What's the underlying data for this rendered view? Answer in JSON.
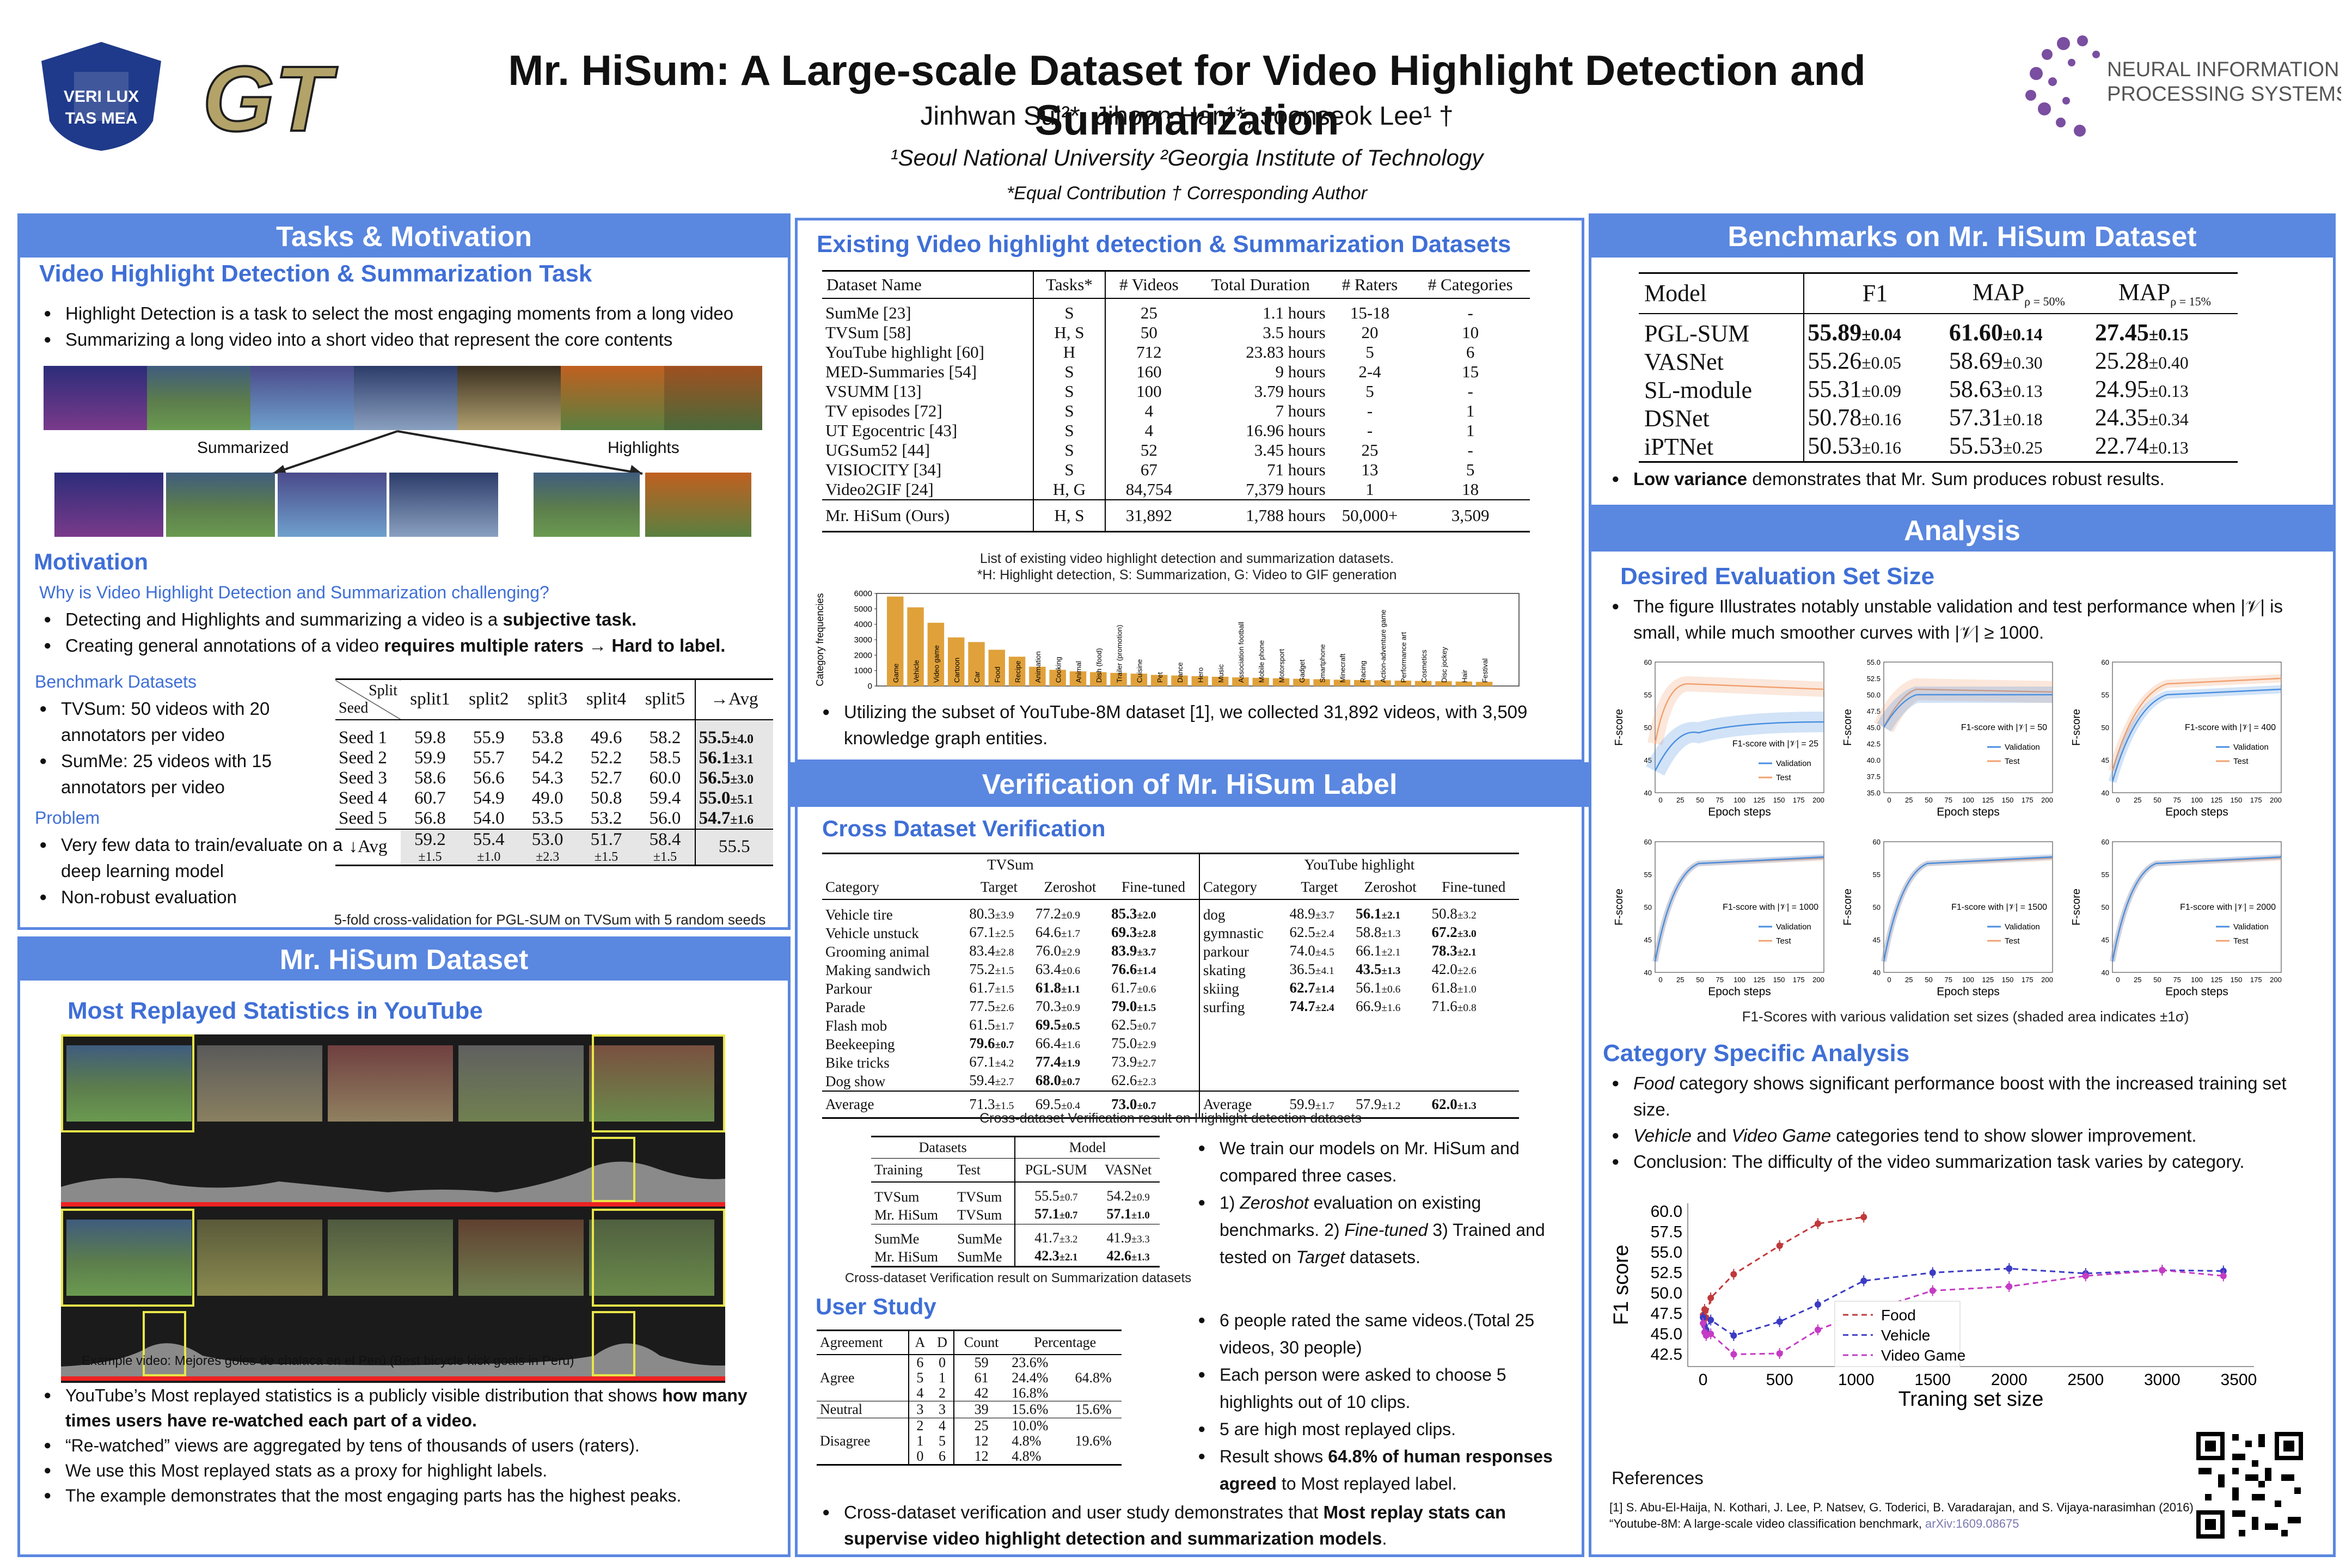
{
  "header": {
    "title": "Mr. HiSum: A Large-scale Dataset for Video Highlight Detection and Summarization",
    "authors": "Jinhwan Sul²*, Jihoon Han¹*, Joonseok Lee¹ †",
    "affiliations": "¹Seoul National University  ²Georgia Institute of Technology",
    "contribution": "*Equal Contribution  † Corresponding Author",
    "logo_snu": "VERI LUX TAS MEA",
    "logo_gt": "GT",
    "logo_neurips": "NEURAL INFORMATION PROCESSING SYSTEMS"
  },
  "tasks": {
    "band": "Tasks & Motivation",
    "subtitle": "Video Highlight Detection & Summarization Task",
    "bullets": [
      "Highlight Detection is a task to select the most engaging moments from a long video",
      "Summarizing a long video into a short video that represent the core contents"
    ],
    "label_summarized": "Summarized",
    "label_highlights": "Highlights",
    "motivation_title": "Motivation",
    "motivation_question": "Why is Video Highlight Detection and Summarization challenging?",
    "motivation_b1_pre": "Detecting and Highlights and summarizing a video is a ",
    "motivation_b1_bold": "subjective task.",
    "motivation_b2_pre": "Creating general annotations of a video ",
    "motivation_b2_bold": "requires multiple raters → Hard to label.",
    "bench_title": "Benchmark Datasets",
    "bench_items": [
      "TVSum: 50 videos with 20 annotators per video",
      "SumMe: 25 videos with 15 annotators per video"
    ],
    "problem_title": "Problem",
    "problem_items": [
      "Very few data to train/evaluate on a deep learning model",
      "Non-robust evaluation"
    ],
    "split_table": {
      "corner_top": "Split",
      "corner_bottom": "Seed",
      "headers": [
        "split1",
        "split2",
        "split3",
        "split4",
        "split5",
        "→Avg"
      ],
      "rows": [
        {
          "seed": "Seed 1",
          "vals": [
            "59.8",
            "55.9",
            "53.8",
            "49.6",
            "58.2"
          ],
          "avg": "55.5",
          "std": "±4.0"
        },
        {
          "seed": "Seed 2",
          "vals": [
            "59.9",
            "55.7",
            "54.2",
            "52.2",
            "58.5"
          ],
          "avg": "56.1",
          "std": "±3.1"
        },
        {
          "seed": "Seed 3",
          "vals": [
            "58.6",
            "56.6",
            "54.3",
            "52.7",
            "60.0"
          ],
          "avg": "56.5",
          "std": "±3.0"
        },
        {
          "seed": "Seed 4",
          "vals": [
            "60.7",
            "54.9",
            "49.0",
            "50.8",
            "59.4"
          ],
          "avg": "55.0",
          "std": "±5.1"
        },
        {
          "seed": "Seed 5",
          "vals": [
            "56.8",
            "54.0",
            "53.5",
            "53.2",
            "56.0"
          ],
          "avg": "54.7",
          "std": "±1.6"
        }
      ],
      "avg_label": "↓Avg",
      "avg_vals": [
        "59.2",
        "55.4",
        "53.0",
        "51.7",
        "58.4"
      ],
      "avg_stds": [
        "±1.5",
        "±1.0",
        "±2.3",
        "±1.5",
        "±1.5"
      ],
      "grand": "55.5",
      "caption": "5-fold cross-validation for PGL-SUM on TVSum with 5 random seeds"
    }
  },
  "dataset": {
    "band": "Mr. HiSum Dataset",
    "subtitle": "Most Replayed Statistics in YouTube",
    "example_caption": "Example video: Mejores goles de chalaca en el Perú (Best bicycle kick goals in Peru)",
    "bullets": [
      {
        "pre": "YouTube’s Most replayed statistics is a publicly visible distribution that shows ",
        "bold": "how many times users have re-watched each part of a video.",
        "post": ""
      },
      {
        "pre": "“Re-watched” views are aggregated by tens of thousands of users (raters).",
        "bold": "",
        "post": ""
      },
      {
        "pre": "We use this Most replayed stats as a proxy for highlight labels.",
        "bold": "",
        "post": ""
      },
      {
        "pre": "The example demonstrates that the most engaging parts has the highest peaks.",
        "bold": "",
        "post": ""
      }
    ]
  },
  "existing": {
    "title": "Existing Video highlight detection &  Summarization Datasets",
    "headers": [
      "Dataset Name",
      "Tasks*",
      "# Videos",
      "Total Duration",
      "# Raters",
      "# Categories"
    ],
    "rows": [
      [
        "SumMe [23]",
        "S",
        "25",
        "1.1 hours",
        "15-18",
        "-"
      ],
      [
        "TVSum [58]",
        "H, S",
        "50",
        "3.5 hours",
        "20",
        "10"
      ],
      [
        "YouTube highlight [60]",
        "H",
        "712",
        "23.83 hours",
        "5",
        "6"
      ],
      [
        "MED-Summaries [54]",
        "S",
        "160",
        "9 hours",
        "2-4",
        "15"
      ],
      [
        "VSUMM [13]",
        "S",
        "100",
        "3.79 hours",
        "5",
        "-"
      ],
      [
        "TV episodes [72]",
        "S",
        "4",
        "7 hours",
        "-",
        "1"
      ],
      [
        "UT Egocentric [43]",
        "S",
        "4",
        "16.96 hours",
        "-",
        "1"
      ],
      [
        "UGSum52 [44]",
        "S",
        "52",
        "3.45 hours",
        "25",
        "-"
      ],
      [
        "VISIOCITY [34]",
        "S",
        "67",
        "71 hours",
        "13",
        "5"
      ],
      [
        "Video2GIF [24]",
        "H, G",
        "84,754",
        "7,379 hours",
        "1",
        "18"
      ]
    ],
    "ours": [
      "Mr. HiSum (Ours)",
      "H, S",
      "31,892",
      "1,788 hours",
      "50,000+",
      "3,509"
    ],
    "caption1": "List of existing video highlight detection and summarization datasets.",
    "caption2": "*H: Highlight detection, S: Summarization, G: Video to GIF generation",
    "bullet": "Utilizing the subset of YouTube-8M dataset [1], we collected 31,892 videos, with 3,509 knowledge graph entities."
  },
  "chart_data": {
    "type": "bar",
    "ylabel": "Category frequencies",
    "yticks": [
      "0",
      "1000",
      "2000",
      "3000",
      "4000",
      "5000",
      "6000"
    ],
    "ylim": [
      0,
      6000
    ],
    "categories": [
      "Game",
      "Vehicle",
      "Video game",
      "Cartoon",
      "Car",
      "Food",
      "Recipe",
      "Animation",
      "Cooking",
      "Animal",
      "Dish (food)",
      "Trailer (promotion)",
      "Cuisine",
      "Pet",
      "Dance",
      "Hero",
      "Music",
      "Association football",
      "Mobile phone",
      "Motorsport",
      "Gadget",
      "Smartphone",
      "Minecraft",
      "Racing",
      "Action-adventure game",
      "Performance art",
      "Cosmetics",
      "Disc jockey",
      "Hair",
      "Festival"
    ],
    "values": [
      5800,
      5100,
      4100,
      3150,
      2850,
      2350,
      1900,
      1250,
      1050,
      950,
      900,
      850,
      800,
      720,
      680,
      640,
      600,
      560,
      530,
      500,
      470,
      440,
      410,
      390,
      370,
      350,
      330,
      310,
      290,
      270
    ]
  },
  "verification": {
    "band": "Verification of Mr. HiSum Label",
    "subtitle": "Cross Dataset Verification",
    "tvsum_label": "TVSum",
    "yt_label": "YouTube highlight",
    "col_headers": [
      "Category",
      "Target",
      "Zeroshot",
      "Fine-tuned",
      "Category",
      "Target",
      "Zeroshot",
      "Fine-tuned"
    ],
    "left_rows": [
      [
        "Vehicle tire",
        "80.3",
        "±3.9",
        "77.2",
        "±0.9",
        "85.3",
        "±2.0"
      ],
      [
        "Vehicle unstuck",
        "67.1",
        "±2.5",
        "64.6",
        "±1.7",
        "69.3",
        "±2.8"
      ],
      [
        "Grooming animal",
        "83.4",
        "±2.8",
        "76.0",
        "±2.9",
        "83.9",
        "±3.7"
      ],
      [
        "Making sandwich",
        "75.2",
        "±1.5",
        "63.4",
        "±0.6",
        "76.6",
        "±1.4"
      ],
      [
        "Parkour",
        "61.7",
        "±1.5",
        "61.8",
        "±1.1",
        "61.7",
        "±0.6"
      ],
      [
        "Parade",
        "77.5",
        "±2.6",
        "70.3",
        "±0.9",
        "79.0",
        "±1.5"
      ],
      [
        "Flash mob",
        "61.5",
        "±1.7",
        "69.5",
        "±0.5",
        "62.5",
        "±0.7"
      ],
      [
        "Beekeeping",
        "79.6",
        "±0.7",
        "66.4",
        "±1.6",
        "75.0",
        "±2.9"
      ],
      [
        "Bike tricks",
        "67.1",
        "±4.2",
        "77.4",
        "±1.9",
        "73.9",
        "±2.7"
      ],
      [
        "Dog show",
        "59.4",
        "±2.7",
        "68.0",
        "±0.7",
        "62.6",
        "±2.3"
      ]
    ],
    "left_bold": [
      [
        5
      ],
      [
        5
      ],
      [
        5
      ],
      [
        5
      ],
      [
        3
      ],
      [
        5
      ],
      [
        3
      ],
      [
        1
      ],
      [
        3
      ],
      [
        3
      ]
    ],
    "right_rows": [
      [
        "dog",
        "48.9",
        "±3.7",
        "56.1",
        "±2.1",
        "50.8",
        "±3.2"
      ],
      [
        "gymnastic",
        "62.5",
        "±2.4",
        "58.8",
        "±1.3",
        "67.2",
        "±3.0"
      ],
      [
        "parkour",
        "74.0",
        "±4.5",
        "66.1",
        "±2.1",
        "78.3",
        "±2.1"
      ],
      [
        "skating",
        "36.5",
        "±4.1",
        "43.5",
        "±1.3",
        "42.0",
        "±2.6"
      ],
      [
        "skiing",
        "62.7",
        "±1.4",
        "56.1",
        "±0.6",
        "61.8",
        "±1.0"
      ],
      [
        "surfing",
        "74.7",
        "±2.4",
        "66.9",
        "±1.6",
        "71.6",
        "±0.8"
      ]
    ],
    "right_bold": [
      [
        3
      ],
      [
        5
      ],
      [
        5
      ],
      [
        3
      ],
      [
        1
      ],
      [
        1
      ]
    ],
    "avg_left": [
      "Average",
      "71.3",
      "±1.5",
      "69.5",
      "±0.4",
      "73.0",
      "±0.7"
    ],
    "avg_right": [
      "Average",
      "59.9",
      "±1.7",
      "57.9",
      "±1.2",
      "62.0",
      "±1.3"
    ],
    "caption_hl": "Cross-dataset Verification result on Highlight detection datasets",
    "sum_table": {
      "h_datasets": "Datasets",
      "h_model": "Model",
      "h2": [
        "Training",
        "Test",
        "PGL-SUM",
        "VASNet"
      ],
      "rows": [
        [
          "TVSum",
          "TVSum",
          "55.5",
          "±0.7",
          "54.2",
          "±0.9"
        ],
        [
          "Mr. HiSum",
          "TVSum",
          "57.1",
          "±0.7",
          "57.1",
          "±1.0"
        ],
        [
          "SumMe",
          "SumMe",
          "41.7",
          "±3.2",
          "41.9",
          "±3.3"
        ],
        [
          "Mr. HiSum",
          "SumMe",
          "42.3",
          "±2.1",
          "42.6",
          "±1.3"
        ]
      ],
      "caption": "Cross-dataset Verification result on Summarization datasets"
    },
    "side_bullets": [
      {
        "pre": "We train our models on Mr. HiSum and compared three cases.",
        "it": "",
        "post": ""
      },
      {
        "pre": "1) ",
        "it": "Zeroshot",
        "post": " evaluation on existing benchmarks. 2) "
      },
      {
        "pre": "",
        "it": "Fine-tuned",
        "post": " 3) Trained and tested on "
      },
      {
        "pre": "",
        "it": "Target",
        "post": " datasets."
      }
    ],
    "user_study_title": "User Study",
    "us_headers": [
      "Agreement",
      "A",
      "D",
      "Count",
      "Percentage"
    ],
    "us_groups": [
      {
        "label": "Agree",
        "rows": [
          [
            "6",
            "0",
            "59",
            "23.6%"
          ],
          [
            "5",
            "1",
            "61",
            "24.4%"
          ],
          [
            "4",
            "2",
            "42",
            "16.8%"
          ]
        ],
        "total": "64.8%"
      },
      {
        "label": "Neutral",
        "rows": [
          [
            "3",
            "3",
            "39",
            "15.6%"
          ]
        ],
        "total": "15.6%"
      },
      {
        "label": "Disagree",
        "rows": [
          [
            "2",
            "4",
            "25",
            "10.0%"
          ],
          [
            "1",
            "5",
            "12",
            "4.8%"
          ],
          [
            "0",
            "6",
            "12",
            "4.8%"
          ]
        ],
        "total": "19.6%"
      }
    ],
    "us_bullets": [
      "6 people rated the same videos.(Total 25 videos, 30 people)",
      "Each person were asked to choose 5 highlights out of 10 clips.",
      "5 are high most replayed clips."
    ],
    "us_result_pre": "Result shows ",
    "us_result_bold": "64.8% of human responses agreed",
    "us_result_post": " to Most replayed label.",
    "conclusion_pre": "Cross-dataset verification and user study demonstrates that ",
    "conclusion_bold": "Most replay stats can supervise video highlight detection and summarization models",
    "conclusion_post": "."
  },
  "benchmarks": {
    "band": "Benchmarks on Mr. HiSum Dataset",
    "headers": [
      "Model",
      "F1",
      "MAP",
      "ρ = 50%",
      "MAP",
      "ρ = 15%"
    ],
    "rows": [
      [
        "PGL-SUM",
        "55.89",
        "±0.04",
        "61.60",
        "±0.14",
        "27.45",
        "±0.15"
      ],
      [
        "VASNet",
        "55.26",
        "±0.05",
        "58.69",
        "±0.30",
        "25.28",
        "±0.40"
      ],
      [
        "SL-module",
        "55.31",
        "±0.09",
        "58.63",
        "±0.13",
        "24.95",
        "±0.13"
      ],
      [
        "DSNet",
        "50.78",
        "±0.16",
        "57.31",
        "±0.18",
        "24.35",
        "±0.34"
      ],
      [
        "iPTNet",
        "50.53",
        "±0.16",
        "55.53",
        "±0.25",
        "22.74",
        "±0.13"
      ]
    ],
    "note_bold": "Low variance",
    "note": " demonstrates that Mr. Sum produces robust results."
  },
  "analysis": {
    "band": "Analysis",
    "eval_title": "Desired Evaluation Set Size",
    "eval_bullet": "The figure Illustrates notably unstable validation and test performance when |𝒱| is small, while much smoother curves with |𝒱| ≥ 1000.",
    "mini_titles": [
      "F1-score with |𝒱| = 25",
      "F1-score with |𝒱| = 50",
      "F1-score with |𝒱| = 400",
      "F1-score with |𝒱| = 1000",
      "F1-score with |𝒱| = 1500",
      "F1-score with |𝒱| = 2000"
    ],
    "mini_ylabel": "F-score",
    "mini_xlabel": "Epoch steps",
    "mini_legend": [
      "Validation",
      "Test"
    ],
    "mini_xticks": [
      "0",
      "25",
      "50",
      "75",
      "100",
      "125",
      "150",
      "175",
      "200"
    ],
    "mini_yticks_a": [
      "40",
      "45",
      "50",
      "55",
      "60"
    ],
    "mini_yticks_b": [
      "35.0",
      "37.5",
      "40.0",
      "42.5",
      "45.0",
      "47.5",
      "50.0",
      "52.5",
      "55.0"
    ],
    "mini_caption": "F1-Scores with various validation set sizes (shaded area indicates ±1σ)",
    "cat_title": "Category Specific Analysis",
    "cat_bullets": [
      {
        "it": "Food",
        "post": " category shows significant performance boost with the increased training set size."
      },
      {
        "it": "Vehicle",
        "mid": " and ",
        "it2": "Video Game",
        "post": " categories tend to show slower improvement."
      },
      {
        "it": "",
        "post": "Conclusion: The difficulty of the video summarization task varies by category."
      }
    ],
    "cat_chart": {
      "type": "line",
      "xlabel": "Traning set size",
      "ylabel": "F1 score",
      "xticks": [
        0,
        500,
        1000,
        1500,
        2000,
        2500,
        3000,
        3500
      ],
      "yticks": [
        42.5,
        45.0,
        47.5,
        50.0,
        52.5,
        55.0,
        57.5,
        60.0
      ],
      "xlim": [
        -100,
        3600
      ],
      "ylim": [
        41,
        61
      ],
      "series": [
        {
          "name": "Food",
          "color": "#c0393b",
          "x": [
            0,
            10,
            20,
            50,
            200,
            500,
            750,
            1050
          ],
          "y": [
            47.3,
            48.0,
            47.0,
            49.4,
            52.3,
            55.8,
            58.5,
            59.3
          ]
        },
        {
          "name": "Vehicle",
          "color": "#3b3bc4",
          "x": [
            0,
            10,
            20,
            50,
            200,
            500,
            750,
            1050,
            1500,
            2000,
            2500,
            3000,
            3400
          ],
          "y": [
            47.0,
            46.0,
            45.5,
            46.7,
            44.8,
            46.5,
            48.6,
            51.5,
            52.5,
            53.0,
            52.4,
            52.8,
            52.7
          ]
        },
        {
          "name": "Video Game",
          "color": "#c43bc4",
          "x": [
            0,
            10,
            20,
            50,
            200,
            500,
            750,
            1050,
            1500,
            2000,
            2500,
            3000,
            3400
          ],
          "y": [
            46.3,
            45.2,
            44.8,
            45.0,
            42.5,
            42.6,
            45.5,
            47.6,
            50.3,
            50.8,
            52.1,
            52.8,
            52.1
          ]
        }
      ]
    },
    "references_title": "References",
    "reference_pre": "[1] S. Abu-El-Haija, N. Kothari, J. Lee, P. Natsev, G. Toderici, B. Varadarajan, and S. Vijaya-narasimhan (2016). “Youtube-8M: A large-scale video classification benchmark, ",
    "reference_link": "arXiv:1609.08675"
  }
}
